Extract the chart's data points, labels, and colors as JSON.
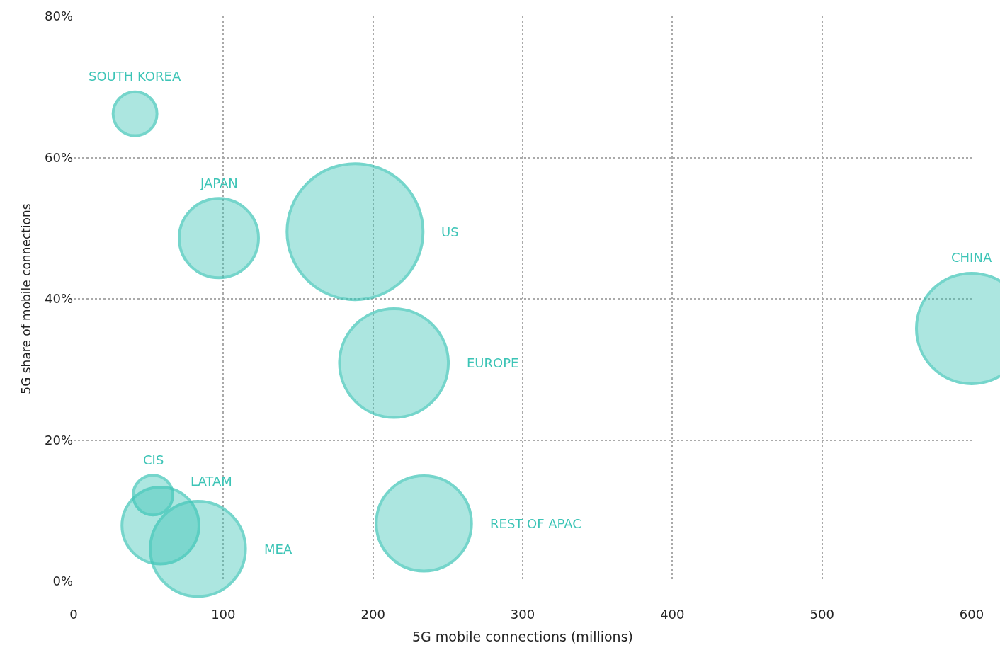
{
  "chart_data": {
    "type": "bubble",
    "xlabel": "5G mobile connections (millions)",
    "ylabel": "5G share of mobile connections",
    "series": [
      {
        "name": "SOUTH KOREA",
        "color": "#3cc4b6",
        "x": [
          41
        ],
        "values": [
          66.2
        ],
        "sizes": [
          0.104
        ]
      },
      {
        "name": "JAPAN",
        "color": "#3cc4b6",
        "x": [
          97
        ],
        "values": [
          48.6
        ],
        "sizes": [
          0.34
        ]
      },
      {
        "name": "US",
        "color": "#3cc4b6",
        "x": [
          188
        ],
        "values": [
          49.5
        ],
        "sizes": [
          1
        ]
      },
      {
        "name": "EUROPE",
        "color": "#3cc4b6",
        "x": [
          214
        ],
        "values": [
          30.9
        ],
        "sizes": [
          0.64
        ]
      },
      {
        "name": "CHINA",
        "color": "#3cc4b6",
        "x": [
          600
        ],
        "values": [
          35.8
        ],
        "sizes": [
          0.66
        ]
      },
      {
        "name": "CIS",
        "color": "#3cc4b6",
        "x": [
          53
        ],
        "values": [
          12.2
        ],
        "sizes": [
          0.085
        ]
      },
      {
        "name": "LATAM",
        "color": "#3cc4b6",
        "x": [
          58
        ],
        "values": [
          7.9
        ],
        "sizes": [
          0.32
        ]
      },
      {
        "name": "MEA",
        "color": "#3cc4b6",
        "x": [
          83
        ],
        "values": [
          4.6
        ],
        "sizes": [
          0.49
        ]
      },
      {
        "name": "REST OF APAC",
        "color": "#3cc4b6",
        "x": [
          234
        ],
        "values": [
          8.2
        ],
        "sizes": [
          0.49
        ]
      }
    ],
    "xlim": [
      0,
      600
    ],
    "xticks": [
      0,
      100,
      200,
      300,
      400,
      500,
      600
    ],
    "ylim": [
      0,
      80
    ],
    "yticks": [
      {
        "value": 0,
        "label": "0%"
      },
      {
        "value": 20,
        "label": "20%"
      },
      {
        "value": 40,
        "label": "40%"
      },
      {
        "value": 60,
        "label": "60%"
      },
      {
        "value": 80,
        "label": "80%"
      }
    ],
    "grid": true,
    "legend": false
  }
}
